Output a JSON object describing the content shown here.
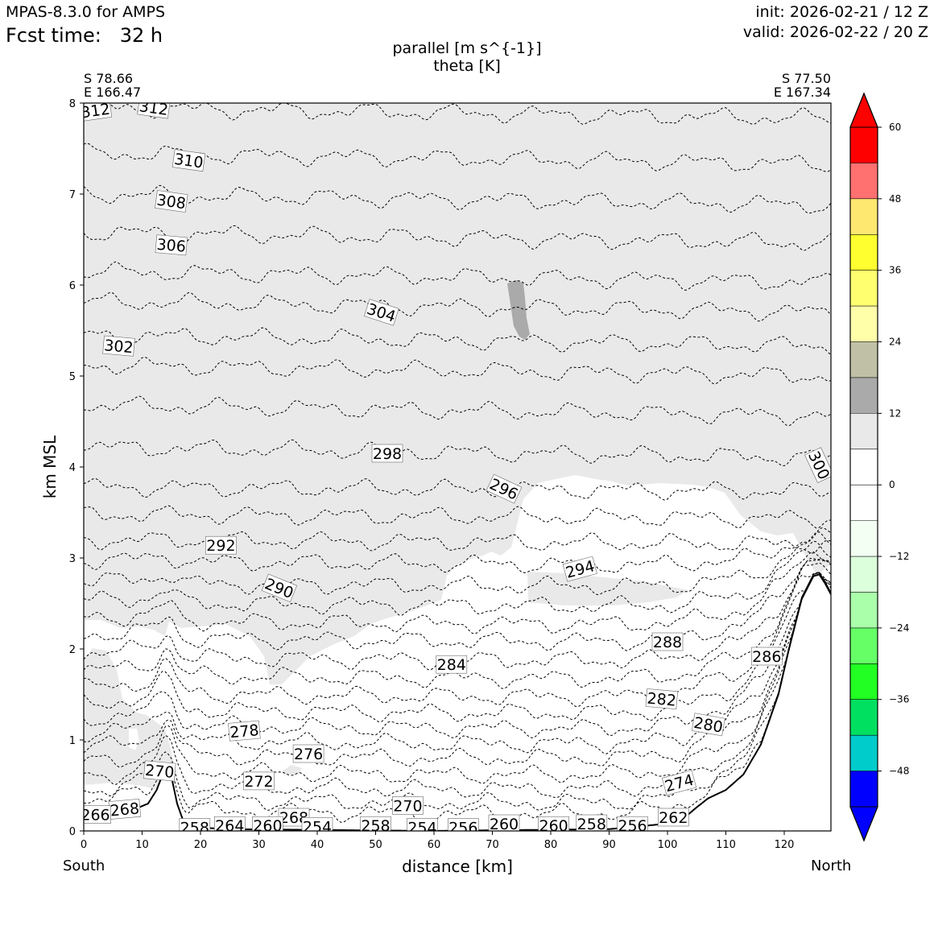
{
  "header": {
    "model": "MPAS-8.3.0 for AMPS",
    "fcst_label": "Fcst time:",
    "fcst_value": "32 h",
    "init": "init: 2026-02-21 / 12 Z",
    "valid": "valid: 2026-02-22 / 20 Z"
  },
  "chart_data": {
    "type": "cross-section",
    "title": "parallel [m s^{-1}]",
    "subtitle": "theta [K]",
    "start_point": {
      "lat": "S 78.66",
      "lon": "E 166.47"
    },
    "end_point": {
      "lat": "S 77.50",
      "lon": "E 167.34"
    },
    "xlabel": "distance [km]",
    "ylabel": "km MSL",
    "x_left_label": "South",
    "x_right_label": "North",
    "xlim": [
      0,
      128
    ],
    "ylim": [
      0,
      8
    ],
    "x_ticks": [
      "0",
      "10",
      "20",
      "30",
      "40",
      "50",
      "60",
      "70",
      "80",
      "90",
      "100",
      "110",
      "120"
    ],
    "y_ticks": [
      "0",
      "1",
      "2",
      "3",
      "4",
      "5",
      "6",
      "7",
      "8"
    ],
    "contour_labels": [
      {
        "text": "312",
        "x": 2,
        "y": 7.92,
        "rot": -8
      },
      {
        "text": "312",
        "x": 12,
        "y": 7.95,
        "rot": 8
      },
      {
        "text": "310",
        "x": 18,
        "y": 7.37,
        "rot": 8
      },
      {
        "text": "308",
        "x": 15,
        "y": 6.92,
        "rot": 8
      },
      {
        "text": "306",
        "x": 15,
        "y": 6.44,
        "rot": 5
      },
      {
        "text": "304",
        "x": 51,
        "y": 5.7,
        "rot": 18
      },
      {
        "text": "302",
        "x": 6,
        "y": 5.33,
        "rot": 5
      },
      {
        "text": "298",
        "x": 52,
        "y": 4.15,
        "rot": 0
      },
      {
        "text": "300",
        "x": 126,
        "y": 4.02,
        "rot": 65
      },
      {
        "text": "296",
        "x": 72,
        "y": 3.76,
        "rot": 25
      },
      {
        "text": "292",
        "x": 23.5,
        "y": 3.14,
        "rot": 0
      },
      {
        "text": "294",
        "x": 85,
        "y": 2.88,
        "rot": -15
      },
      {
        "text": "290",
        "x": 33.5,
        "y": 2.67,
        "rot": 22
      },
      {
        "text": "288",
        "x": 100,
        "y": 2.08,
        "rot": 0
      },
      {
        "text": "286",
        "x": 117,
        "y": 1.92,
        "rot": 0
      },
      {
        "text": "284",
        "x": 63,
        "y": 1.83,
        "rot": 0
      },
      {
        "text": "282",
        "x": 99,
        "y": 1.45,
        "rot": 5
      },
      {
        "text": "280",
        "x": 107,
        "y": 1.17,
        "rot": 10
      },
      {
        "text": "278",
        "x": 27.5,
        "y": 1.1,
        "rot": -5
      },
      {
        "text": "276",
        "x": 38.5,
        "y": 0.85,
        "rot": 0
      },
      {
        "text": "272",
        "x": 30,
        "y": 0.55,
        "rot": 0
      },
      {
        "text": "270",
        "x": 13,
        "y": 0.66,
        "rot": 5
      },
      {
        "text": "274",
        "x": 102,
        "y": 0.53,
        "rot": -15
      },
      {
        "text": "270",
        "x": 55.5,
        "y": 0.28,
        "rot": 0
      },
      {
        "text": "268",
        "x": 7,
        "y": 0.24,
        "rot": -5
      },
      {
        "text": "266",
        "x": 2,
        "y": 0.18,
        "rot": 0
      },
      {
        "text": "262",
        "x": 101,
        "y": 0.15,
        "rot": 0
      },
      {
        "text": "268",
        "x": 36,
        "y": 0.15,
        "rot": 0
      },
      {
        "text": "258",
        "x": 19,
        "y": 0.04,
        "rot": 0
      },
      {
        "text": "264",
        "x": 25,
        "y": 0.06,
        "rot": 0
      },
      {
        "text": "260",
        "x": 31.5,
        "y": 0.06,
        "rot": 0
      },
      {
        "text": "254",
        "x": 40,
        "y": 0.05,
        "rot": 0
      },
      {
        "text": "258",
        "x": 50,
        "y": 0.06,
        "rot": 0
      },
      {
        "text": "254",
        "x": 58,
        "y": 0.04,
        "rot": 0
      },
      {
        "text": "256",
        "x": 65,
        "y": 0.04,
        "rot": 0
      },
      {
        "text": "260",
        "x": 72,
        "y": 0.08,
        "rot": 0
      },
      {
        "text": "260",
        "x": 80.5,
        "y": 0.06,
        "rot": 0
      },
      {
        "text": "258",
        "x": 87,
        "y": 0.08,
        "rot": 0
      },
      {
        "text": "256",
        "x": 94,
        "y": 0.06,
        "rot": 0
      }
    ],
    "contour_levels_km": [
      7.95,
      7.45,
      7.0,
      6.58,
      6.15,
      5.82,
      5.45,
      5.12,
      4.68,
      4.22,
      3.78,
      3.48,
      3.2,
      2.96,
      2.72,
      2.5,
      2.3,
      2.11,
      1.9,
      1.7,
      1.5,
      1.32,
      1.15,
      0.98,
      0.82,
      0.64,
      0.48,
      0.33,
      0.21
    ],
    "terrain": {
      "x": [
        0,
        4,
        8,
        11,
        12.5,
        13.5,
        14.2,
        15,
        16,
        17,
        18,
        24,
        60,
        90,
        100,
        103,
        105,
        107,
        110,
        113,
        116,
        119,
        121,
        123,
        125,
        126,
        127,
        128
      ],
      "y": [
        0.15,
        0.17,
        0.22,
        0.3,
        0.45,
        0.62,
        0.68,
        0.6,
        0.3,
        0.12,
        0.05,
        0.02,
        0.0,
        0.02,
        0.08,
        0.15,
        0.26,
        0.36,
        0.45,
        0.62,
        0.95,
        1.5,
        2.05,
        2.55,
        2.8,
        2.82,
        2.72,
        2.6
      ]
    },
    "shaded_region_vmax_range": "6 to 12",
    "colorbar": {
      "ticks": [
        "60",
        "48",
        "36",
        "24",
        "12",
        "0",
        "−12",
        "−24",
        "−36",
        "−48"
      ],
      "colors": [
        "#ff0000",
        "#ff7070",
        "#ffe870",
        "#ffff30",
        "#ffff70",
        "#ffffaa",
        "#c0c0a6",
        "#aaaaaa",
        "#e9e9e9",
        "#ffffff",
        "#ffffff",
        "#f2fff2",
        "#dcffdc",
        "#aaffaa",
        "#66ff66",
        "#22ff22",
        "#00e060",
        "#00cccc",
        "#0000ff"
      ],
      "over_color": "#ff0000",
      "under_color": "#0000ff"
    }
  }
}
